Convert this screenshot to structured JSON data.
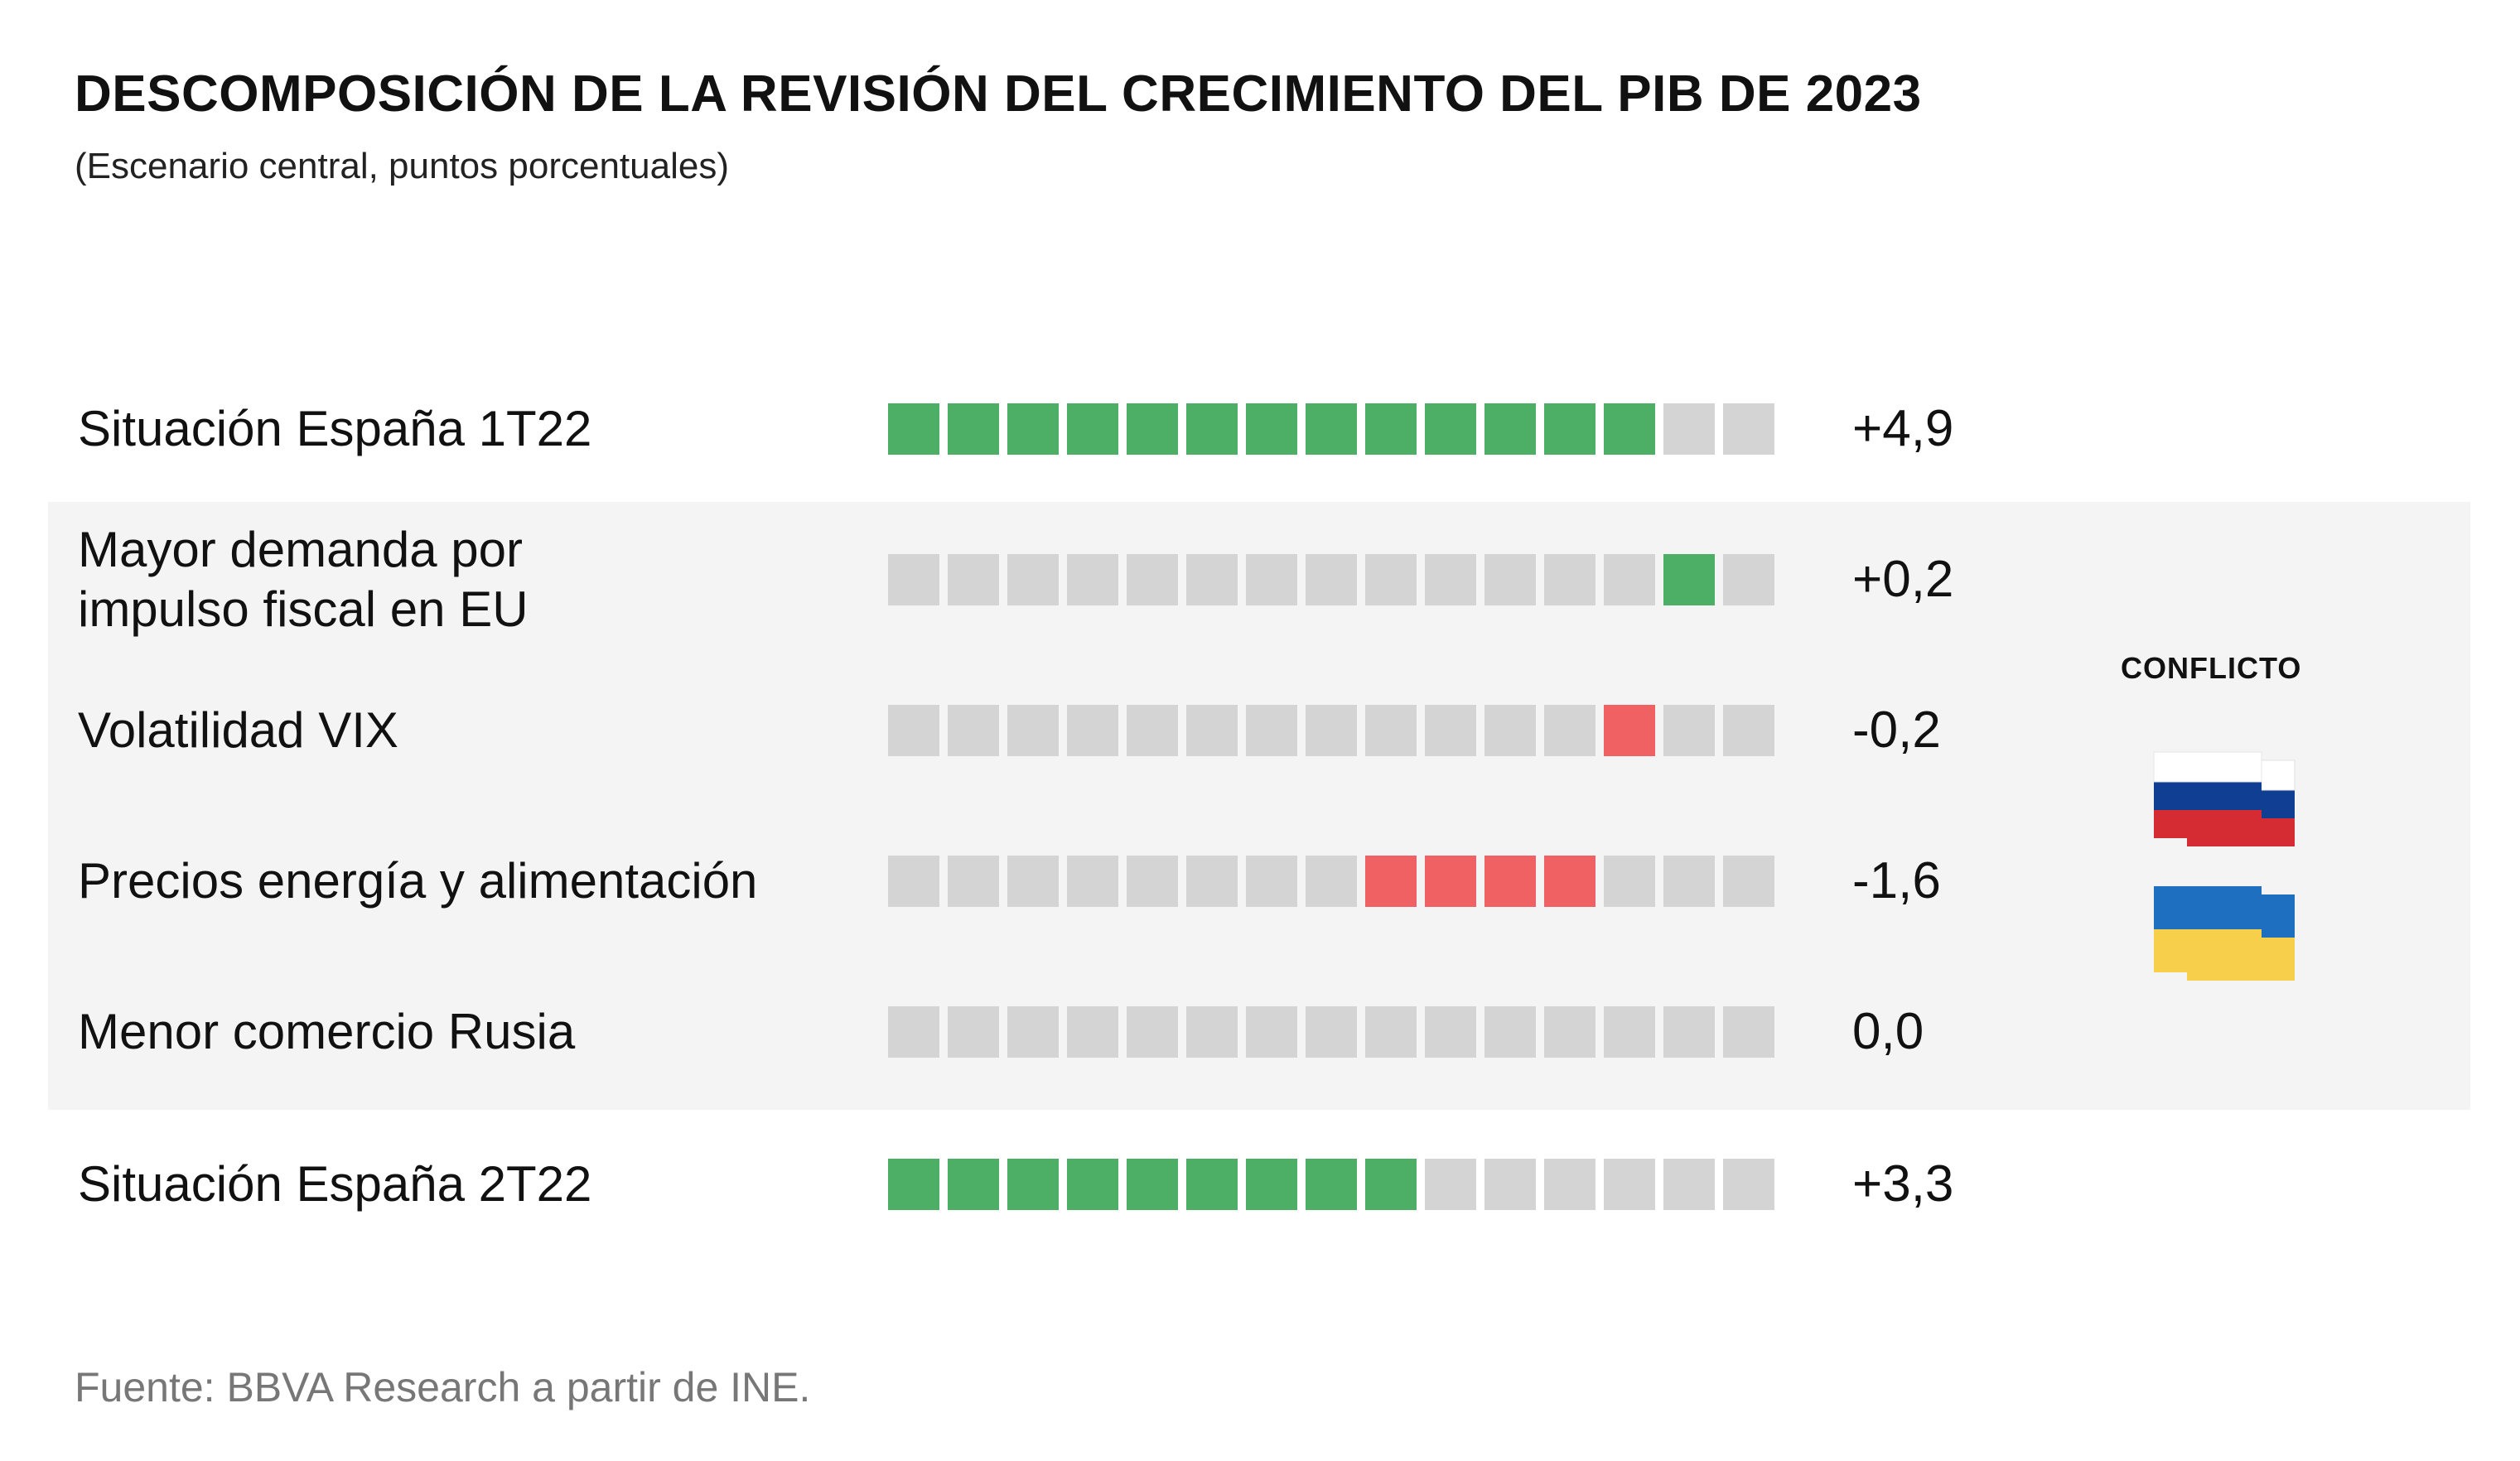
{
  "title": "DESCOMPOSICIÓN DE LA REVISIÓN DEL CRECIMIENTO DEL PIB DE 2023",
  "subtitle": "(Escenario central, puntos porcentuales)",
  "source": "Fuente: BBVA Research a partir de INE.",
  "conflict_label": "CONFLICTO",
  "colors": {
    "positive": "#4caf65",
    "negative": "#ef6163",
    "empty": "#d4d4d4",
    "band": "#f4f4f4",
    "russia": [
      "#ffffff",
      "#0f3e92",
      "#d52b33"
    ],
    "ukraine": [
      "#1e6fc0",
      "#f7cf4a"
    ]
  },
  "flags": [
    "russia-flag-icon",
    "ukraine-flag-icon"
  ],
  "chart_data": {
    "type": "waterfall-blocks",
    "blocks_total": 15,
    "rows": [
      {
        "label_lines": [
          "Situación España 1T22"
        ],
        "value": "+4,9",
        "numeric": 4.9,
        "kind": "total",
        "filled_from": 0,
        "filled_to": 13
      },
      {
        "label_lines": [
          "Mayor demanda por",
          "impulso fiscal en EU"
        ],
        "value": "+0,2",
        "numeric": 0.2,
        "kind": "positive",
        "filled_from": 13,
        "filled_to": 14
      },
      {
        "label_lines": [
          "Volatilidad VIX"
        ],
        "value": "-0,2",
        "numeric": -0.2,
        "kind": "negative",
        "filled_from": 12,
        "filled_to": 13
      },
      {
        "label_lines": [
          "Precios energía y alimentación"
        ],
        "value": "-1,6",
        "numeric": -1.6,
        "kind": "negative",
        "filled_from": 8,
        "filled_to": 12
      },
      {
        "label_lines": [
          "Menor comercio Rusia"
        ],
        "value": "0,0",
        "numeric": 0.0,
        "kind": "neutral",
        "filled_from": 0,
        "filled_to": 0
      },
      {
        "label_lines": [
          "Situación España 2T22"
        ],
        "value": "+3,3",
        "numeric": 3.3,
        "kind": "total",
        "filled_from": 0,
        "filled_to": 9
      }
    ]
  }
}
